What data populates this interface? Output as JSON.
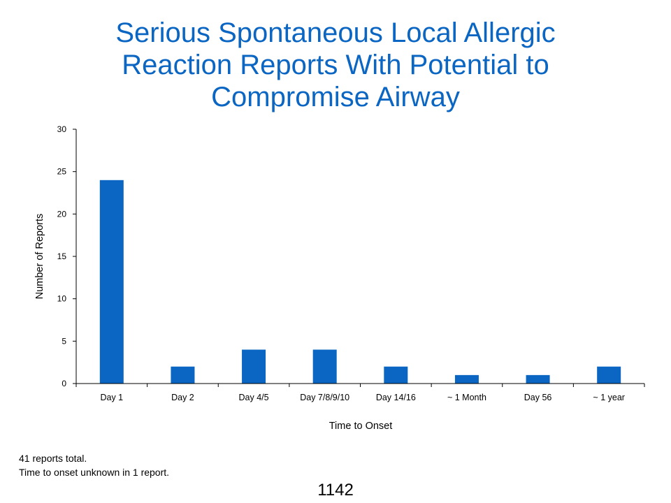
{
  "title_lines": [
    "Serious Spontaneous Local Allergic",
    "Reaction Reports With Potential to",
    "Compromise Airway"
  ],
  "chart_data": {
    "type": "bar",
    "title": "Serious Spontaneous Local Allergic Reaction Reports With Potential to Compromise Airway",
    "categories": [
      "Day 1",
      "Day 2",
      "Day 4/5",
      "Day 7/8/9/10",
      "Day 14/16",
      "~ 1 Month",
      "Day 56",
      "~ 1 year"
    ],
    "values": [
      24,
      2,
      4,
      4,
      2,
      1,
      1,
      2
    ],
    "xlabel": "Time to Onset",
    "ylabel": "Number of Reports",
    "ylim": [
      0,
      30
    ],
    "yticks": [
      0,
      5,
      10,
      15,
      20,
      25,
      30
    ],
    "bar_color": "#0a66c2",
    "grid": false,
    "legend": "none"
  },
  "notes": [
    "41 reports total.",
    "Time to onset unknown in 1 report."
  ],
  "slide_number": "1142",
  "colors": {
    "title": "#0a66c2",
    "bar": "#0a66c2",
    "axis": "#000000"
  }
}
